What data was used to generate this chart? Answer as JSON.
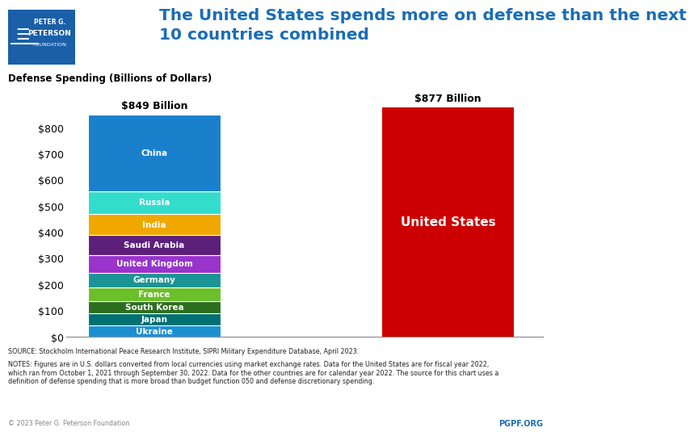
{
  "title": "The United States spends more on defense than the next\n10 countries combined",
  "bar1_label": "$849 Billion",
  "bar2_label": "$877 Billion",
  "bar1_total": 849,
  "bar2_total": 877,
  "segments": [
    {
      "country": "Ukraine",
      "value": 44,
      "color": "#1a8fd1"
    },
    {
      "country": "Japan",
      "value": 46,
      "color": "#007070"
    },
    {
      "country": "South Korea",
      "value": 46,
      "color": "#2d6e1e"
    },
    {
      "country": "France",
      "value": 54,
      "color": "#6abf2a"
    },
    {
      "country": "Germany",
      "value": 56,
      "color": "#1a9494"
    },
    {
      "country": "United Kingdom",
      "value": 68,
      "color": "#9933cc"
    },
    {
      "country": "Saudi Arabia",
      "value": 75,
      "color": "#5c1f7a"
    },
    {
      "country": "India",
      "value": 81,
      "color": "#f0a800"
    },
    {
      "country": "Russia",
      "value": 86,
      "color": "#33ddcc"
    },
    {
      "country": "China",
      "value": 293,
      "color": "#1a80cc"
    }
  ],
  "us_color": "#cc0000",
  "us_label": "United States",
  "ylim": [
    0,
    900
  ],
  "yticks": [
    0,
    100,
    200,
    300,
    400,
    500,
    600,
    700,
    800
  ],
  "ytick_labels": [
    "$0",
    "$100",
    "$200",
    "$300",
    "$400",
    "$500",
    "$600",
    "$700",
    "$800"
  ],
  "background_color": "#ffffff",
  "title_color": "#1a6db5",
  "title_fontsize": 14.5,
  "axis_label": "Defense Spending (Billions of Dollars)",
  "source_line1": "SOURCE: Stockholm International Peace Research Institute, SIPRI Military Expenditure Database, April 2023.",
  "source_line2": "NOTES: Figures are in U.S. dollars converted from local currencies using market exchange rates. Data for the United States are for fiscal year 2022,\nwhich ran from October 1, 2021 through September 30, 2022. Data for the other countries are for calendar year 2022. The source for this chart uses a\ndefinition of defense spending that is more broad than budget function 050 and defense discretionary spending.",
  "copyright_text": "© 2023 Peter G. Peterson Foundation",
  "pgpf_text": "PGPF.ORG",
  "logo_color": "#1a5fa8",
  "logo_text_color": "#1a3a6b",
  "bar_positions": [
    1,
    3
  ],
  "bar_width": 0.9
}
